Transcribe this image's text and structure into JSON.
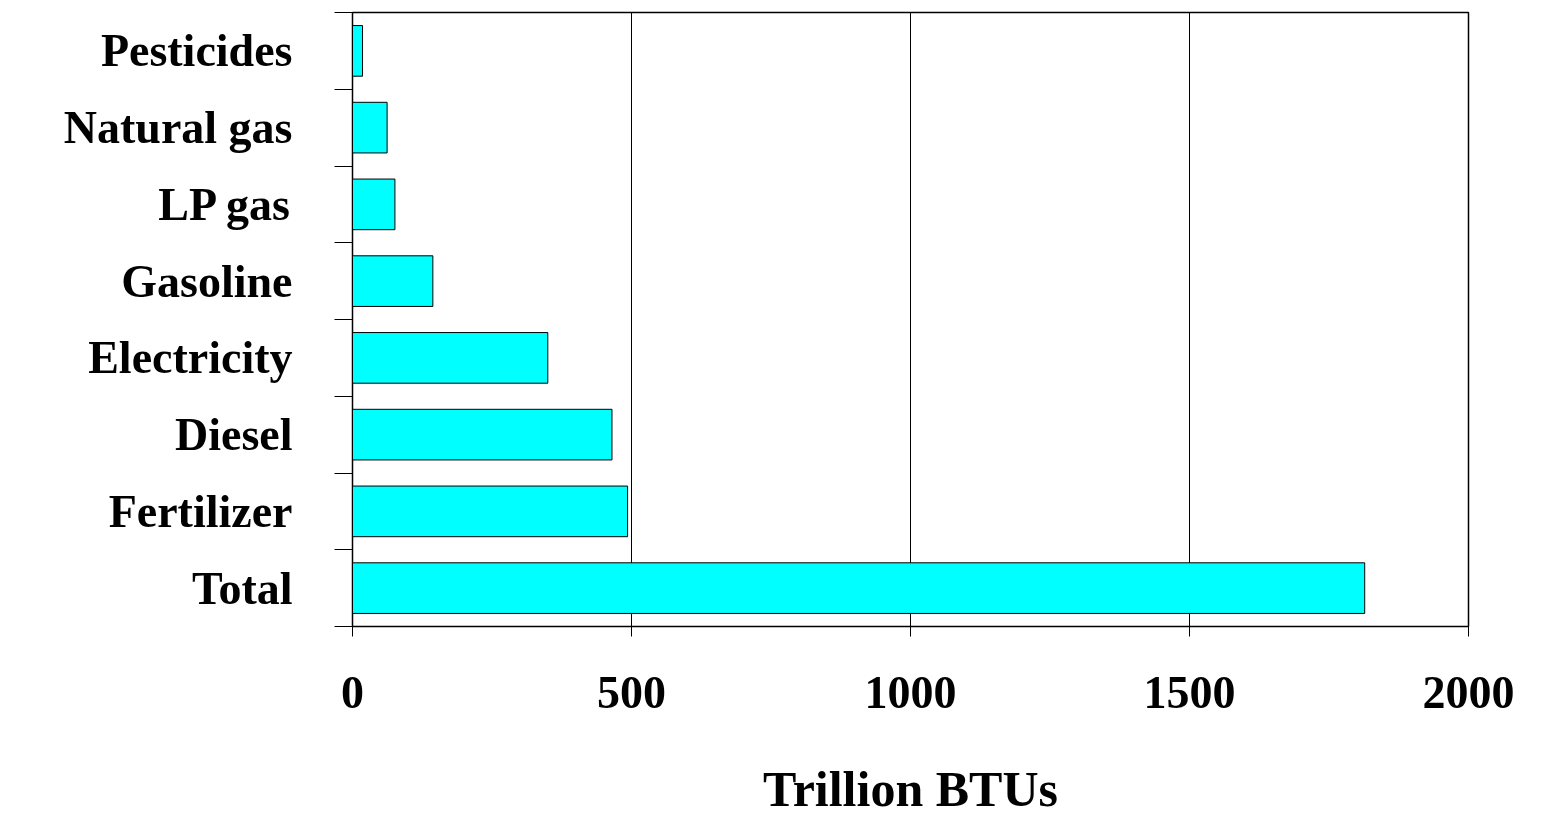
{
  "chart_data": {
    "type": "bar",
    "orientation": "horizontal",
    "xlabel": "Trillion BTUs",
    "categories": [
      "Pesticides",
      "Natural gas",
      "LP gas",
      "Gasoline",
      "Electricity",
      "Diesel",
      "Fertilizer",
      "Total"
    ],
    "values": [
      18,
      62,
      76,
      144,
      350,
      465,
      493,
      1814
    ],
    "color": "#00ffff",
    "xlim": [
      0,
      2000
    ],
    "xticks": [
      0,
      500,
      1000,
      1500,
      2000
    ],
    "grid": "x"
  }
}
